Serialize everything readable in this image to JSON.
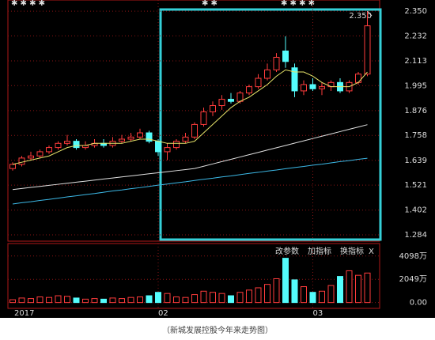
{
  "chart_data": {
    "type": "candlestick",
    "categories": [
      "2017",
      null,
      null,
      null,
      null,
      null,
      null,
      null,
      null,
      null,
      null,
      null,
      null,
      null,
      null,
      null,
      "02",
      null,
      null,
      null,
      null,
      null,
      null,
      null,
      null,
      null,
      null,
      null,
      null,
      null,
      null,
      null,
      null,
      "03",
      null,
      null,
      null,
      null,
      null,
      null
    ],
    "open": [
      1.6,
      1.62,
      1.65,
      1.66,
      1.68,
      1.7,
      1.72,
      1.73,
      1.7,
      1.71,
      1.72,
      1.71,
      1.73,
      1.74,
      1.75,
      1.77,
      1.73,
      1.68,
      1.7,
      1.73,
      1.75,
      1.81,
      1.87,
      1.9,
      1.93,
      1.92,
      1.96,
      1.99,
      2.03,
      2.07,
      2.16,
      2.08,
      1.97,
      2.0,
      1.98,
      1.99,
      2.01,
      1.97,
      2.01,
      2.05
    ],
    "high": [
      1.63,
      1.66,
      1.68,
      1.69,
      1.71,
      1.73,
      1.76,
      1.74,
      1.73,
      1.74,
      1.74,
      1.75,
      1.76,
      1.77,
      1.79,
      1.78,
      1.74,
      1.72,
      1.74,
      1.77,
      1.82,
      1.89,
      1.92,
      1.95,
      1.96,
      1.97,
      2.0,
      2.05,
      2.1,
      2.15,
      2.23,
      2.1,
      2.02,
      2.03,
      2.01,
      2.02,
      2.03,
      2.02,
      2.06,
      2.35
    ],
    "low": [
      1.59,
      1.61,
      1.64,
      1.65,
      1.67,
      1.69,
      1.71,
      1.69,
      1.69,
      1.7,
      1.7,
      1.7,
      1.72,
      1.73,
      1.74,
      1.72,
      1.66,
      1.64,
      1.69,
      1.72,
      1.74,
      1.8,
      1.85,
      1.88,
      1.91,
      1.91,
      1.95,
      1.98,
      2.02,
      2.06,
      2.08,
      1.94,
      1.95,
      1.97,
      1.95,
      1.97,
      1.96,
      1.96,
      2.0,
      2.04
    ],
    "close": [
      1.62,
      1.65,
      1.66,
      1.68,
      1.7,
      1.72,
      1.73,
      1.7,
      1.71,
      1.72,
      1.71,
      1.73,
      1.74,
      1.75,
      1.77,
      1.73,
      1.68,
      1.7,
      1.73,
      1.75,
      1.81,
      1.87,
      1.9,
      1.93,
      1.92,
      1.96,
      1.99,
      2.03,
      2.07,
      2.13,
      2.11,
      1.97,
      2.0,
      1.98,
      1.99,
      2.01,
      1.97,
      2.01,
      2.05,
      2.28
    ],
    "volume": [
      250,
      400,
      350,
      500,
      450,
      600,
      550,
      400,
      300,
      350,
      300,
      400,
      350,
      450,
      500,
      600,
      900,
      800,
      500,
      450,
      700,
      1000,
      900,
      800,
      600,
      900,
      1100,
      1300,
      1600,
      2100,
      3900,
      2000,
      1400,
      900,
      1000,
      1500,
      2300,
      2800,
      2400,
      2600
    ],
    "up_color": "#ff3c3c",
    "down_color": "#54fcfc",
    "ylim": [
      1.254,
      2.403
    ],
    "yticks": [
      {
        "value": 2.35,
        "label": "2.350"
      },
      {
        "value": 2.232,
        "label": "2.232"
      },
      {
        "value": 2.113,
        "label": "2.113"
      },
      {
        "value": 1.995,
        "label": "1.995"
      },
      {
        "value": 1.876,
        "label": "1.876"
      },
      {
        "value": 1.758,
        "label": "1.758"
      },
      {
        "value": 1.639,
        "label": "1.639"
      },
      {
        "value": 1.521,
        "label": "1.521"
      },
      {
        "value": 1.402,
        "label": "1.402"
      },
      {
        "value": 1.284,
        "label": "1.284"
      }
    ],
    "lines": [
      {
        "color": "#e8e46a",
        "values": [
          1.62,
          1.63,
          1.64,
          1.65,
          1.66,
          1.68,
          1.7,
          1.71,
          1.71,
          1.72,
          1.72,
          1.72,
          1.72,
          1.73,
          1.74,
          1.74,
          1.73,
          1.72,
          1.72,
          1.72,
          1.73,
          1.77,
          1.81,
          1.85,
          1.89,
          1.92,
          1.94,
          1.97,
          2.0,
          2.04,
          2.07,
          2.06,
          2.06,
          2.04,
          2.01,
          1.99,
          1.99,
          1.99,
          2.01,
          2.06
        ]
      },
      {
        "color": "#e0e0e0",
        "values": [
          1.5,
          1.505,
          1.51,
          1.515,
          1.52,
          1.525,
          1.53,
          1.535,
          1.54,
          1.545,
          1.55,
          1.555,
          1.56,
          1.565,
          1.57,
          1.575,
          1.58,
          1.585,
          1.59,
          1.595,
          1.6,
          1.611,
          1.622,
          1.633,
          1.644,
          1.655,
          1.666,
          1.677,
          1.688,
          1.699,
          1.71,
          1.721,
          1.732,
          1.743,
          1.754,
          1.765,
          1.776,
          1.787,
          1.798,
          1.809
        ]
      },
      {
        "color": "#3cb8e6",
        "values": [
          1.431,
          1.437,
          1.442,
          1.448,
          1.453,
          1.459,
          1.465,
          1.47,
          1.476,
          1.481,
          1.487,
          1.493,
          1.498,
          1.504,
          1.509,
          1.515,
          1.521,
          1.526,
          1.532,
          1.537,
          1.543,
          1.549,
          1.554,
          1.56,
          1.565,
          1.571,
          1.577,
          1.582,
          1.588,
          1.593,
          1.599,
          1.605,
          1.61,
          1.616,
          1.621,
          1.627,
          1.633,
          1.638,
          1.644,
          1.649
        ]
      }
    ],
    "annotation": "2.350",
    "volume_ylim": [
      -512,
      5196
    ],
    "volume_yticks": [
      {
        "value": 4098,
        "label": "4098万"
      },
      {
        "value": 2049,
        "label": "2049万"
      },
      {
        "value": 0,
        "label": "0.00"
      }
    ]
  },
  "toolbar": [
    "改参数",
    "加指标",
    "换指标",
    "X"
  ],
  "caption": "（新城发展控股今年来走势图）"
}
